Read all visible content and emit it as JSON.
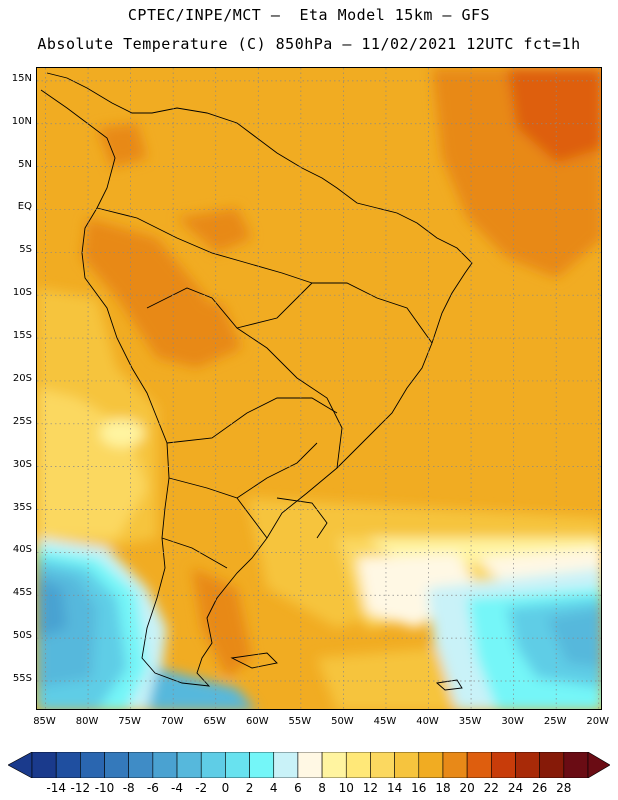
{
  "title_line1": "CPTEC/INPE/MCT –  Eta Model 15km – GFS",
  "title_line2": "Absolute Temperature (C) 850hPa – 11/02/2021 12UTC fct=1h",
  "map": {
    "lon_range": [
      -86,
      -19.5
    ],
    "lat_range": [
      -58.5,
      16.5
    ],
    "lat_ticks": [
      "15N",
      "10N",
      "5N",
      "EQ",
      "5S",
      "10S",
      "15S",
      "20S",
      "25S",
      "30S",
      "35S",
      "40S",
      "45S",
      "50S",
      "55S"
    ],
    "lat_values": [
      15,
      10,
      5,
      0,
      -5,
      -10,
      -15,
      -20,
      -25,
      -30,
      -35,
      -40,
      -45,
      -50,
      -55
    ],
    "lon_ticks": [
      "85W",
      "80W",
      "75W",
      "70W",
      "65W",
      "60W",
      "55W",
      "50W",
      "45W",
      "40W",
      "35W",
      "30W",
      "25W",
      "20W"
    ],
    "lon_values": [
      -85,
      -80,
      -75,
      -70,
      -65,
      -60,
      -55,
      -50,
      -45,
      -40,
      -35,
      -30,
      -25,
      -20
    ],
    "gridlines": "dotted"
  },
  "colorbar": {
    "labels": [
      "-14",
      "-12",
      "-10",
      "-8",
      "-6",
      "-4",
      "-2",
      "0",
      "2",
      "4",
      "6",
      "8",
      "10",
      "12",
      "14",
      "16",
      "18",
      "20",
      "22",
      "24",
      "26",
      "28"
    ],
    "colors": [
      "#1a3a8c",
      "#1f4fa0",
      "#2a66b0",
      "#3479bb",
      "#3f8cc6",
      "#4aa2d1",
      "#56b8dc",
      "#5fcde6",
      "#68e2ef",
      "#74f6f8",
      "#c9f2f8",
      "#fff8e4",
      "#fff4a0",
      "#ffe878",
      "#fbd860",
      "#f6c43e",
      "#f1ac22",
      "#e88918",
      "#de5e0e",
      "#c83c0a",
      "#a82a08",
      "#861a08",
      "#6a0c14"
    ]
  }
}
